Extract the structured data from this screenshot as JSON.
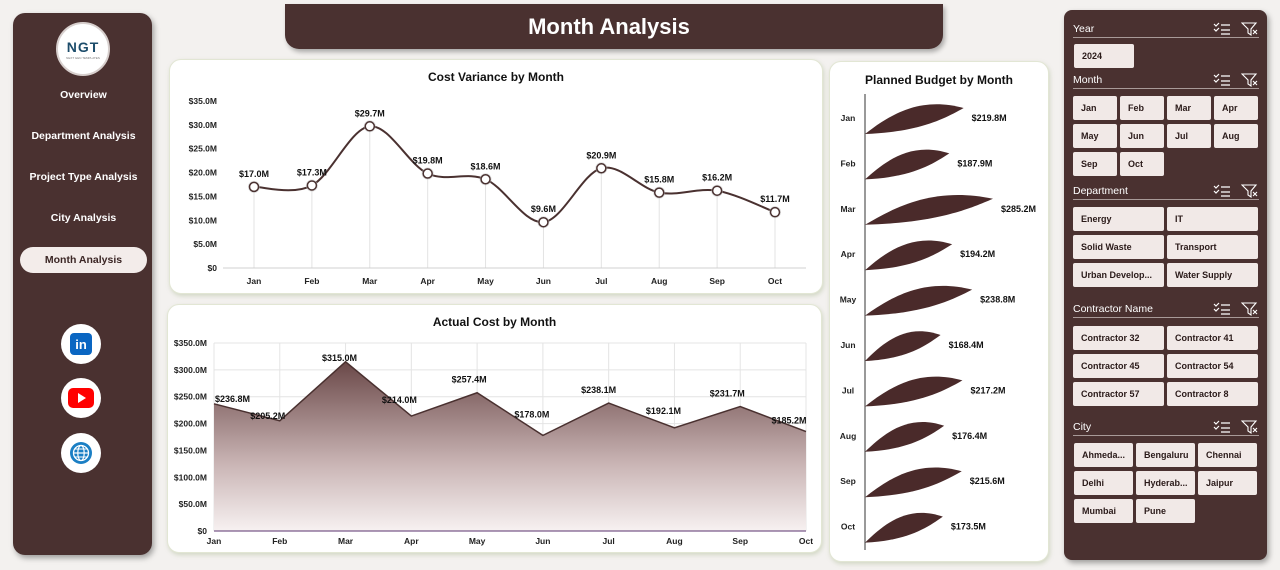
{
  "header": {
    "title": "Month Analysis"
  },
  "logo": {
    "mark": "NGT",
    "tagline": "NEXT GEN TEMPLATES"
  },
  "nav": {
    "items": [
      {
        "label": "Overview",
        "active": false
      },
      {
        "label": "Department Analysis",
        "active": false
      },
      {
        "label": "Project Type Analysis",
        "active": false
      },
      {
        "label": "City Analysis",
        "active": false
      },
      {
        "label": "Month Analysis",
        "active": true
      }
    ]
  },
  "social": [
    {
      "icon": "linkedin-icon",
      "glyph": "in",
      "color": "#0a66c2"
    },
    {
      "icon": "youtube-icon",
      "glyph": "▶",
      "color": "#ff0000"
    },
    {
      "icon": "globe-icon",
      "glyph": "🌐",
      "color": "#1b7fc4"
    }
  ],
  "filters": {
    "year": {
      "label": "Year",
      "options": [
        "2024"
      ]
    },
    "month": {
      "label": "Month",
      "options": [
        "Jan",
        "Feb",
        "Mar",
        "Apr",
        "May",
        "Jun",
        "Jul",
        "Aug",
        "Sep",
        "Oct"
      ]
    },
    "department": {
      "label": "Department",
      "options": [
        "Energy",
        "IT",
        "Solid Waste",
        "Transport",
        "Urban Develop...",
        "Water Supply"
      ]
    },
    "contractor": {
      "label": "Contractor Name",
      "options": [
        "Contractor 32",
        "Contractor 41",
        "Contractor 45",
        "Contractor 54",
        "Contractor 57",
        "Contractor 8"
      ]
    },
    "city": {
      "label": "City",
      "options": [
        "Ahmeda...",
        "Bengaluru",
        "Chennai",
        "Delhi",
        "Hyderab...",
        "Jaipur",
        "Mumbai",
        "Pune"
      ]
    }
  },
  "chart_data": [
    {
      "type": "line",
      "title": "Cost Variance by Month",
      "categories": [
        "Jan",
        "Feb",
        "Mar",
        "Apr",
        "May",
        "Jun",
        "Jul",
        "Aug",
        "Sep",
        "Oct"
      ],
      "values": [
        17.0,
        17.3,
        29.7,
        19.8,
        18.6,
        9.6,
        20.9,
        15.8,
        16.2,
        11.7
      ],
      "data_labels": [
        "$17.0M",
        "$17.3M",
        "$29.7M",
        "$19.8M",
        "$18.6M",
        "$9.6M",
        "$20.9M",
        "$15.8M",
        "$16.2M",
        "$11.7M"
      ],
      "yticks": [
        "$0",
        "$5.0M",
        "$10.0M",
        "$15.0M",
        "$20.0M",
        "$25.0M",
        "$30.0M",
        "$35.0M"
      ],
      "ylim": [
        0,
        35
      ],
      "color": "#4a3130"
    },
    {
      "type": "area",
      "title": "Actual Cost by Month",
      "categories": [
        "Jan",
        "Feb",
        "Mar",
        "Apr",
        "May",
        "Jun",
        "Jul",
        "Aug",
        "Sep",
        "Oct"
      ],
      "values": [
        236.8,
        205.2,
        315.0,
        214.0,
        257.4,
        178.0,
        238.1,
        192.1,
        231.7,
        185.2
      ],
      "data_labels": [
        "$236.8M",
        "$205.2M",
        "$315.0M",
        "$214.0M",
        "$257.4M",
        "$178.0M",
        "$238.1M",
        "$192.1M",
        "$231.7M",
        "$185.2M"
      ],
      "yticks": [
        "$0",
        "$50.0M",
        "$100.0M",
        "$150.0M",
        "$200.0M",
        "$250.0M",
        "$300.0M",
        "$350.0M"
      ],
      "ylim": [
        0,
        350
      ],
      "color": "#4a3130"
    },
    {
      "type": "bar",
      "orientation": "horizontal",
      "title": "Planned Budget by Month",
      "categories": [
        "Jan",
        "Feb",
        "Mar",
        "Apr",
        "May",
        "Jun",
        "Jul",
        "Aug",
        "Sep",
        "Oct"
      ],
      "values": [
        219.8,
        187.9,
        285.2,
        194.2,
        238.8,
        168.4,
        217.2,
        176.4,
        215.6,
        173.5
      ],
      "data_labels": [
        "$219.8M",
        "$187.9M",
        "$285.2M",
        "$194.2M",
        "$238.8M",
        "$168.4M",
        "$217.2M",
        "$176.4M",
        "$215.6M",
        "$173.5M"
      ],
      "color": "#4a2a2a"
    }
  ]
}
